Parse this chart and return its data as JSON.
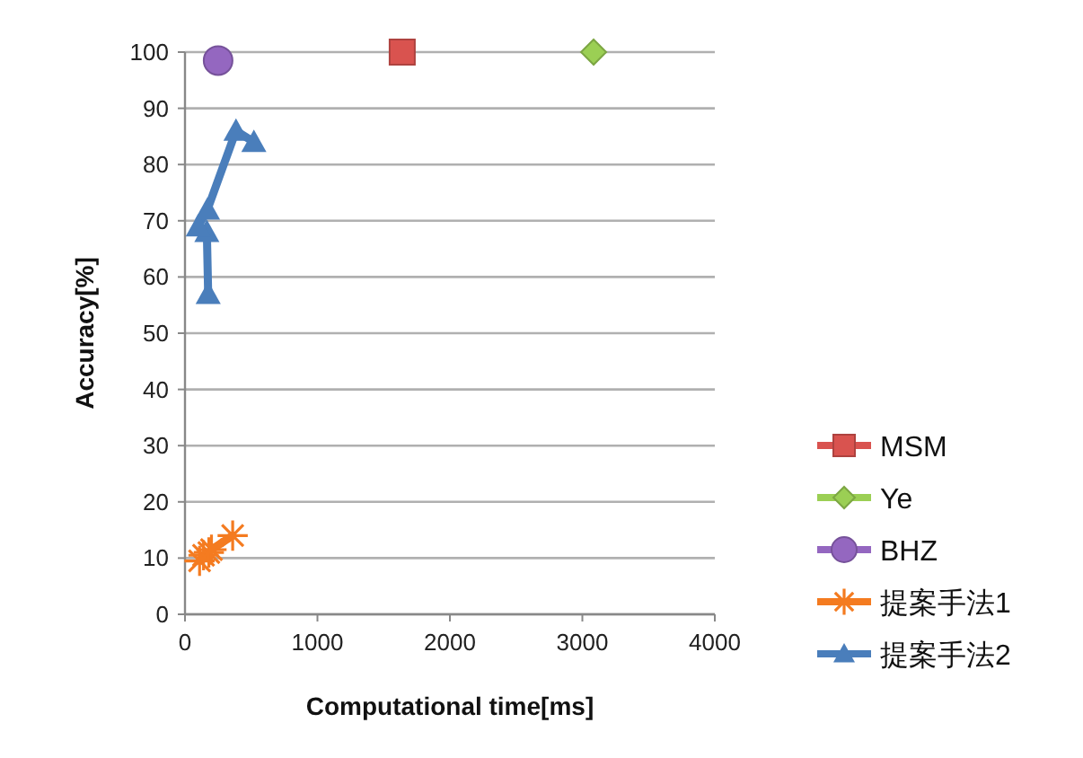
{
  "chart_data": {
    "type": "line",
    "xlabel": "Computational time[ms]",
    "ylabel": "Accuracy[%]",
    "xlim": [
      0,
      4000
    ],
    "xticks": [
      0,
      1000,
      2000,
      3000,
      4000
    ],
    "ylim": [
      0,
      100
    ],
    "yticks": [
      0,
      10,
      20,
      30,
      40,
      50,
      60,
      70,
      80,
      90,
      100
    ],
    "grid": "y",
    "legend": "right",
    "series": [
      {
        "name": "MSM",
        "type": "scatter",
        "marker": "square",
        "color": "#d9534f",
        "x": [
          1640
        ],
        "values": [
          100
        ]
      },
      {
        "name": "Ye",
        "type": "scatter",
        "marker": "diamond",
        "color": "#9bcf54",
        "x": [
          3085
        ],
        "values": [
          100
        ]
      },
      {
        "name": "BHZ",
        "type": "scatter",
        "marker": "circle",
        "color": "#9467c0",
        "x": [
          250
        ],
        "values": [
          98.5
        ]
      },
      {
        "name": "提案手法1",
        "marker": "cross",
        "color": "#f47b20",
        "x": [
          110,
          140,
          180,
          200,
          360
        ],
        "values": [
          9.5,
          10.5,
          11,
          11.5,
          14
        ]
      },
      {
        "name": "提案手法2",
        "marker": "triangle",
        "color": "#4a7ebb",
        "x": [
          175,
          165,
          100,
          170,
          385,
          520
        ],
        "values": [
          57,
          68,
          69,
          72,
          86,
          84
        ]
      }
    ]
  }
}
